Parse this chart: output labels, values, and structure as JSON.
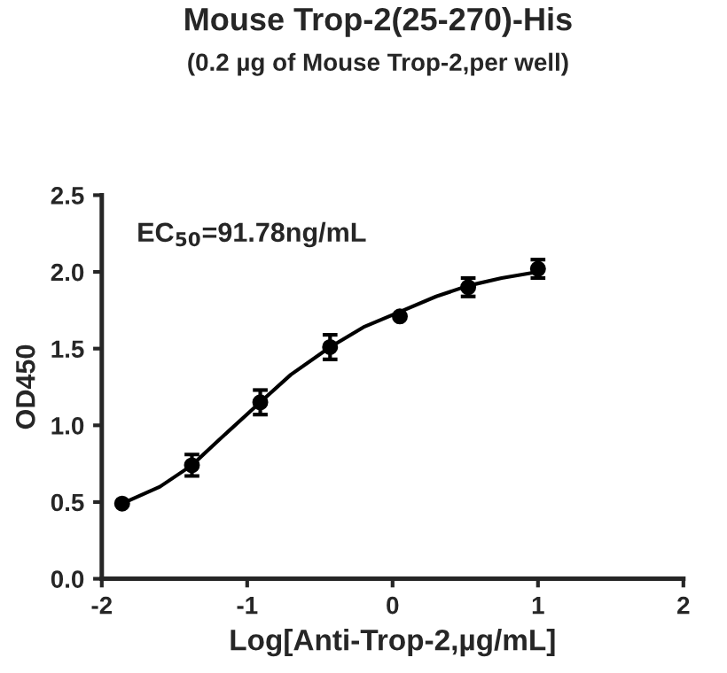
{
  "chart_data": {
    "type": "scatter",
    "title": "Mouse Trop-2(25-270)-His",
    "subtitle": "(0.2 µg of Mouse Trop-2,per well)",
    "xlabel": "Log[Anti-Trop-2,µg/mL]",
    "ylabel": "OD450",
    "annotations": [
      "EC$_{50}$=91.78ng/mL"
    ],
    "series": [
      {
        "color": "#000000",
        "marker": "circle",
        "x": [
          -1.86,
          -1.38,
          -0.91,
          -0.43,
          0.05,
          0.52,
          1.0
        ],
        "values": [
          0.49,
          0.74,
          1.15,
          1.51,
          1.71,
          1.9,
          2.02
        ],
        "errors": [
          null,
          0.07,
          0.08,
          0.08,
          null,
          0.06,
          0.06
        ]
      },
      {
        "type": "line",
        "color": "#000000",
        "marker": "none",
        "x": [
          -1.86,
          -1.6,
          -1.38,
          -1.2,
          -0.91,
          -0.7,
          -0.43,
          -0.2,
          0.05,
          0.3,
          0.52,
          0.75,
          1.0
        ],
        "values": [
          0.49,
          0.6,
          0.74,
          0.9,
          1.15,
          1.33,
          1.51,
          1.64,
          1.74,
          1.84,
          1.91,
          1.96,
          2.0
        ]
      }
    ],
    "xlim": [
      -2,
      2
    ],
    "xticks": [
      -2,
      -1,
      0,
      1,
      2
    ],
    "ylim": [
      0,
      2.5
    ],
    "yticks": [
      {
        "value": 0,
        "label": "0.0"
      },
      0.5,
      {
        "value": 1,
        "label": "1.0"
      },
      1.5,
      {
        "value": 2,
        "label": "2.0"
      },
      2.5
    ],
    "grid": false,
    "legend": false
  }
}
